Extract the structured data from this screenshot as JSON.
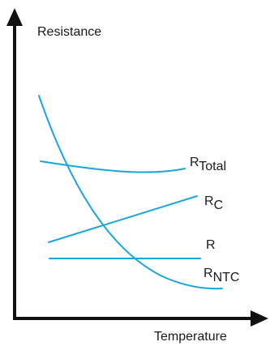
{
  "axes": {
    "y_label": "Resistance",
    "x_label": "Temperature"
  },
  "curves": [
    {
      "id": "total",
      "label_main": "R",
      "label_sub": "Total"
    },
    {
      "id": "c",
      "label_main": "R",
      "label_sub": "C"
    },
    {
      "id": "r",
      "label_main": "R",
      "label_sub": ""
    },
    {
      "id": "ntc",
      "label_main": "R",
      "label_sub": "NTC"
    }
  ],
  "colors": {
    "curve": "#1aa5dc",
    "axis": "#111111"
  }
}
